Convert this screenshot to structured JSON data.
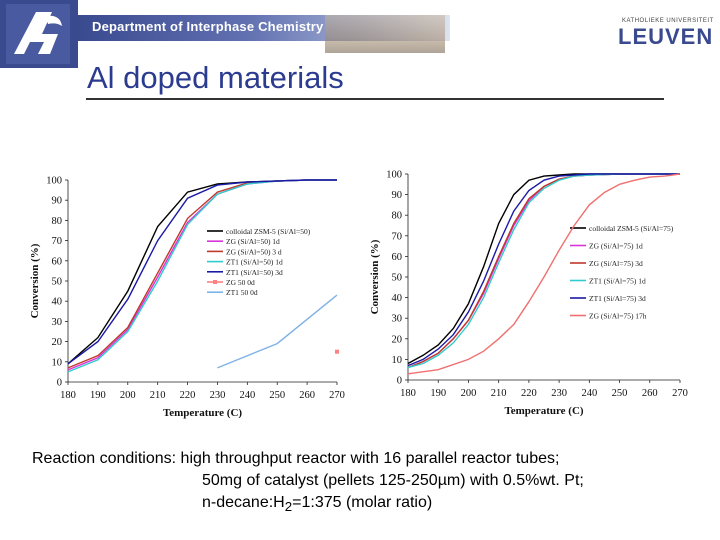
{
  "header": {
    "department": "Department of Interphase Chemistry",
    "university_small": "KATHOLIEKE UNIVERSITEIT",
    "university": "LEUVEN"
  },
  "slide_title": "Al doped materials",
  "caption": {
    "label": "Reaction conditions:",
    "line1": "high throughput reactor with 16 parallel reactor tubes;",
    "line2": "50mg of catalyst (pellets 125-250µm) with 0.5%wt. Pt;",
    "line3_prefix": "n-decane:H",
    "line3_sub": "2",
    "line3_suffix": "=1:375 (molar ratio)"
  },
  "chart_data": [
    {
      "type": "line",
      "xlabel": "Temperature (C)",
      "ylabel": "Conversion (%)",
      "xlim": [
        180,
        270
      ],
      "ylim": [
        0,
        100
      ],
      "xticks": [
        180,
        190,
        200,
        210,
        220,
        230,
        240,
        250,
        260,
        270
      ],
      "yticks": [
        0,
        10,
        20,
        30,
        40,
        50,
        60,
        70,
        80,
        90,
        100
      ],
      "grid": false,
      "legend_position": "right",
      "series": [
        {
          "name": "colloidal ZSM-5 (Si/Al=50)",
          "color": "#000000",
          "x": [
            180,
            190,
            200,
            210,
            220,
            230,
            240,
            250,
            260,
            270
          ],
          "y": [
            9,
            22,
            45,
            77,
            94,
            98,
            99,
            99.5,
            100,
            100
          ]
        },
        {
          "name": "ZG (Si/Al=50) 1d",
          "color": "#d933d9",
          "x": [
            180,
            190,
            200,
            210,
            220,
            230,
            240,
            250,
            260,
            270
          ],
          "y": [
            6,
            12,
            26,
            52,
            79,
            93,
            98,
            99.5,
            100,
            100
          ]
        },
        {
          "name": "ZG (Si/Al=50) 3 d",
          "color": "#c0392b",
          "x": [
            180,
            190,
            200,
            210,
            220,
            230,
            240,
            250,
            260,
            270
          ],
          "y": [
            7,
            13,
            27,
            54,
            81,
            94,
            98.5,
            99.5,
            100,
            100
          ]
        },
        {
          "name": "ZT1 (Si/Al=50) 1d",
          "color": "#33cccc",
          "x": [
            180,
            190,
            200,
            210,
            220,
            230,
            240,
            250,
            260,
            270
          ],
          "y": [
            5,
            11,
            25,
            50,
            78,
            93,
            98,
            99.5,
            100,
            100
          ]
        },
        {
          "name": "ZT1 (Si/Al=50) 3d",
          "color": "#1a1aa6",
          "x": [
            180,
            190,
            200,
            210,
            220,
            230,
            240,
            250,
            260,
            270
          ],
          "y": [
            9,
            20,
            41,
            70,
            91,
            97.5,
            99,
            99.5,
            100,
            100
          ]
        },
        {
          "name": "ZG 50 0d",
          "color": "#ff8080",
          "x": [
            270
          ],
          "y": [
            15
          ]
        },
        {
          "name": "ZT1 50 0d",
          "color": "#7fb2e5",
          "x": [
            230,
            250,
            270
          ],
          "y": [
            7,
            19,
            43
          ]
        }
      ]
    },
    {
      "type": "line",
      "xlabel": "Temperature (C)",
      "ylabel": "Conversion (%)",
      "xlim": [
        180,
        270
      ],
      "ylim": [
        0,
        100
      ],
      "xticks": [
        180,
        190,
        200,
        210,
        220,
        230,
        240,
        250,
        260,
        270
      ],
      "yticks": [
        0,
        10,
        20,
        30,
        40,
        50,
        60,
        70,
        80,
        90,
        100
      ],
      "grid": false,
      "legend_position": "right",
      "series": [
        {
          "name": "colloidal ZSM-5 (Si/Al=75)",
          "color": "#000000",
          "x": [
            180,
            185,
            190,
            195,
            200,
            205,
            210,
            215,
            220,
            225,
            230,
            235,
            240,
            250,
            260,
            270
          ],
          "y": [
            8,
            12,
            17,
            25,
            37,
            55,
            76,
            90,
            97,
            99,
            99.5,
            100,
            100,
            100,
            100,
            100
          ]
        },
        {
          "name": "ZG (Si/Al=75) 1d",
          "color": "#d933d9",
          "x": [
            180,
            185,
            190,
            195,
            200,
            205,
            210,
            215,
            220,
            225,
            230,
            235,
            240,
            250,
            260,
            270
          ],
          "y": [
            6,
            9,
            13,
            20,
            29,
            42,
            59,
            75,
            87,
            94,
            97.5,
            99,
            99.5,
            100,
            100,
            100
          ]
        },
        {
          "name": "ZG (Si/Al=75) 3d",
          "color": "#c0392b",
          "x": [
            180,
            185,
            190,
            195,
            200,
            205,
            210,
            215,
            220,
            225,
            230,
            235,
            240,
            250,
            260,
            270
          ],
          "y": [
            6,
            9,
            13,
            20,
            29,
            43,
            60,
            76,
            88,
            94,
            97.5,
            99,
            99.5,
            100,
            100,
            100
          ]
        },
        {
          "name": "ZT1 (Si/Al=75) 1d",
          "color": "#33cccc",
          "x": [
            180,
            185,
            190,
            195,
            200,
            205,
            210,
            215,
            220,
            225,
            230,
            235,
            240,
            250,
            260,
            270
          ],
          "y": [
            6,
            8,
            12,
            18,
            27,
            40,
            57,
            73,
            86,
            93,
            97,
            99,
            99.5,
            100,
            100,
            100
          ]
        },
        {
          "name": "ZT1 (Si/Al=75) 3d",
          "color": "#1a1aa6",
          "x": [
            180,
            185,
            190,
            195,
            200,
            205,
            210,
            215,
            220,
            225,
            230,
            235,
            240,
            250,
            260,
            270
          ],
          "y": [
            7,
            10,
            15,
            22,
            33,
            48,
            66,
            82,
            92,
            97,
            99,
            99.5,
            100,
            100,
            100,
            100
          ]
        },
        {
          "name": "ZG (Si/Al=75) 17h",
          "color": "#f07070",
          "x": [
            180,
            190,
            200,
            205,
            210,
            215,
            220,
            225,
            230,
            235,
            240,
            245,
            250,
            255,
            260,
            265,
            270
          ],
          "y": [
            3,
            5,
            10,
            14,
            20,
            27,
            38,
            50,
            63,
            75,
            85,
            91,
            95,
            97,
            98.5,
            99,
            100
          ]
        }
      ]
    }
  ]
}
